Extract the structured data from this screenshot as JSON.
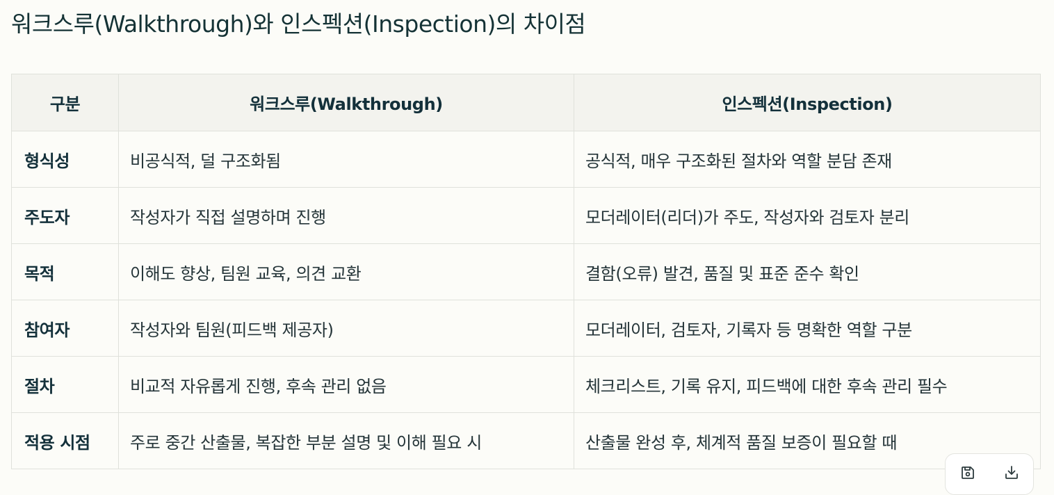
{
  "title": "워크스루(Walkthrough)와 인스펙션(Inspection)의 차이점",
  "table": {
    "headers": [
      "구분",
      "워크스루(Walkthrough)",
      "인스펙션(Inspection)"
    ],
    "rows": [
      [
        "형식성",
        "비공식적, 덜 구조화됨",
        "공식적, 매우 구조화된 절차와 역할 분담 존재"
      ],
      [
        "주도자",
        "작성자가 직접 설명하며 진행",
        "모더레이터(리더)가 주도, 작성자와 검토자 분리"
      ],
      [
        "목적",
        "이해도 향상, 팀원 교육, 의견 교환",
        "결함(오류) 발견, 품질 및 표준 준수 확인"
      ],
      [
        "참여자",
        "작성자와 팀원(피드백 제공자)",
        "모더레이터, 검토자, 기록자 등 명확한 역할 구분"
      ],
      [
        "절차",
        "비교적 자유롭게 진행, 후속 관리 없음",
        "체크리스트, 기록 유지, 피드백에 대한 후속 관리 필수"
      ],
      [
        "적용 시점",
        "주로 중간 산출물, 복잡한 부분 설명 및 이해 필요 시",
        "산출물 완성 후, 체계적 품질 보증이 필요할 때"
      ]
    ]
  },
  "toolbar": {
    "icons": [
      "save-icon",
      "download-icon"
    ]
  }
}
